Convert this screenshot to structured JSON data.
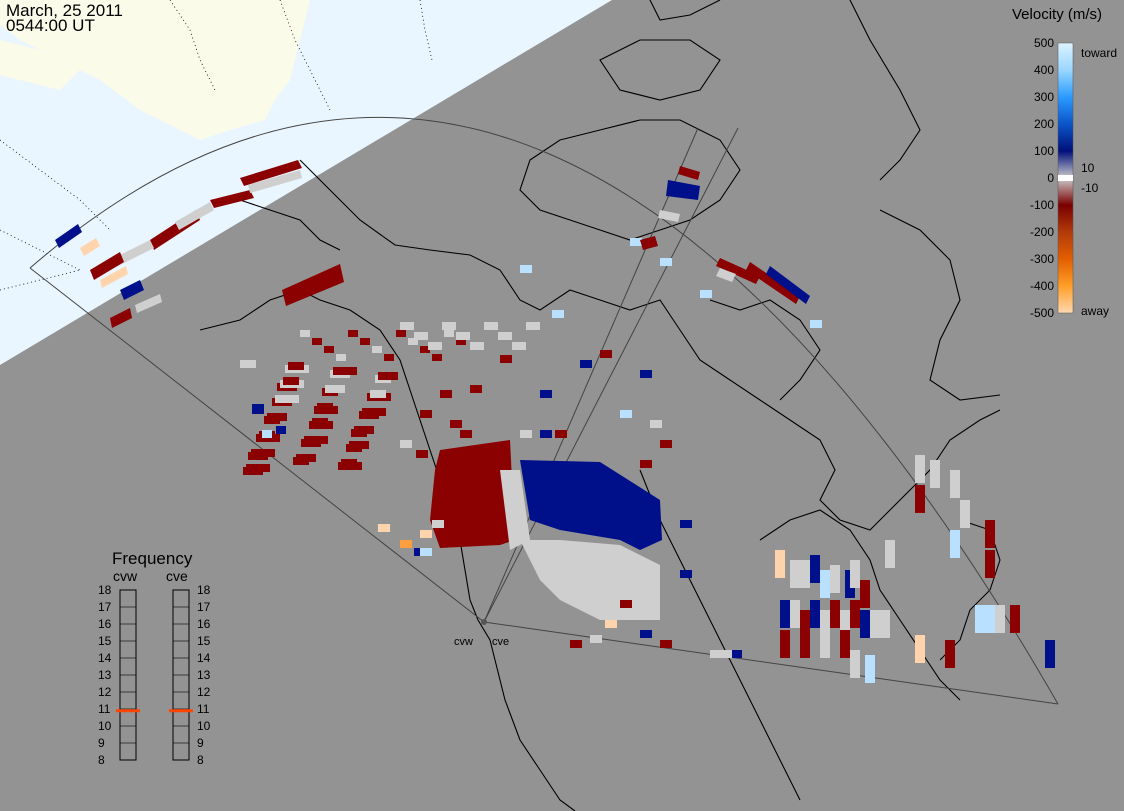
{
  "header": {
    "date": "March, 25 2011",
    "time": "0544:00 UT"
  },
  "colorbar": {
    "title": "Velocity (m/s)",
    "ticks": [
      "500",
      "400",
      "300",
      "200",
      "100",
      "0",
      "-100",
      "-200",
      "-300",
      "-400",
      "-500"
    ],
    "inner_ticks": [
      "10",
      "-10"
    ],
    "toward_label": "toward",
    "away_label": "away",
    "stops": [
      "#ddf2ff",
      "#9ad7ff",
      "#2b9bff",
      "#0a55c8",
      "#00107a",
      "#cccccc",
      "#7a0000",
      "#b23a0a",
      "#e25f00",
      "#ff9e28",
      "#ffd9b0"
    ]
  },
  "frequency": {
    "title": "Frequency",
    "cvw_label": "cvw",
    "cve_label": "cve",
    "scale": [
      "18",
      "17",
      "16",
      "15",
      "14",
      "13",
      "12",
      "11",
      "10",
      "9",
      "8"
    ],
    "cvw_mhz": 10.9,
    "cve_mhz": 10.9,
    "marker_color": "#ff4400"
  },
  "radars": {
    "west_label": "cvw",
    "east_label": "cve"
  },
  "map": {
    "background_color": "#939393",
    "daylight_color": "#e9f6ff",
    "land_light_color": "#fbfbe9",
    "velocity_away_color": "#8b0000",
    "velocity_toward_color": "#00108a",
    "ground_scatter_color": "#cfcfcf"
  }
}
